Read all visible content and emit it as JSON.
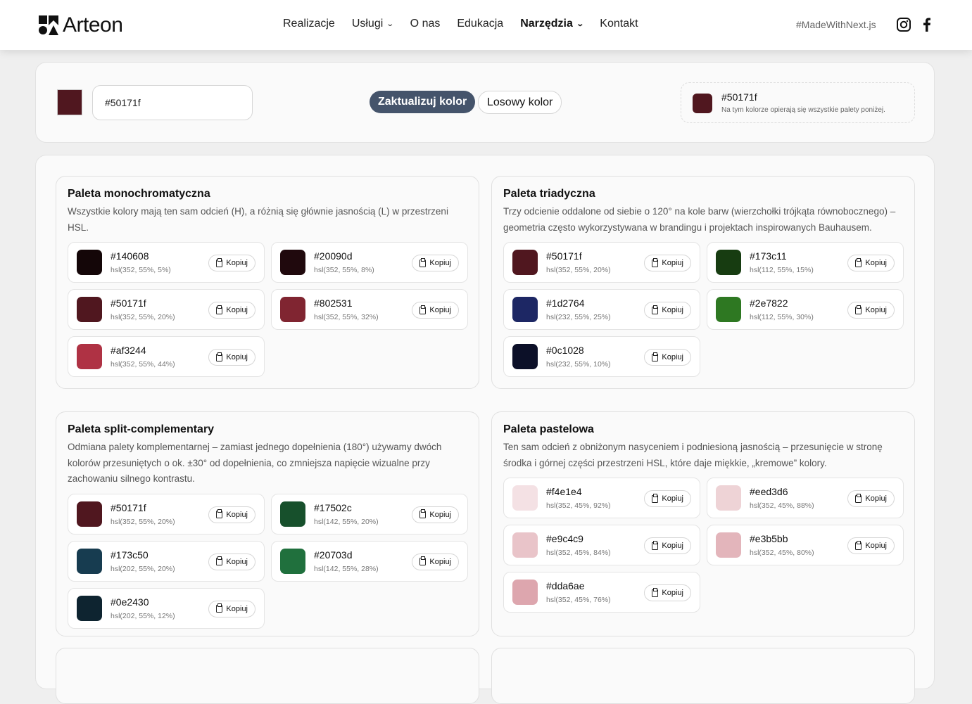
{
  "header": {
    "logo": "Arteon",
    "nav": [
      {
        "label": "Realizacje",
        "dropdown": false,
        "active": false
      },
      {
        "label": "Usługi",
        "dropdown": true,
        "active": false
      },
      {
        "label": "O nas",
        "dropdown": false,
        "active": false
      },
      {
        "label": "Edukacja",
        "dropdown": false,
        "active": false
      },
      {
        "label": "Narzędzia",
        "dropdown": true,
        "active": true
      },
      {
        "label": "Kontakt",
        "dropdown": false,
        "active": false
      }
    ],
    "hashtag": "#MadeWithNext.js"
  },
  "picker": {
    "current_color": "#50171f",
    "input_value": "#50171f",
    "update_label": "Zaktualizuj kolor",
    "random_label": "Losowy kolor",
    "base_hex": "#50171f",
    "base_desc": "Na tym kolorze opierają się wszystkie palety poniżej."
  },
  "copy_label": "Kopiuj",
  "palettes": [
    {
      "title": "Paleta monochromatyczna",
      "desc": "Wszystkie kolory mają ten sam odcień (H), a różnią się głównie jasnością (L) w przestrzeni HSL.",
      "colors": [
        [
          "#140608",
          "hsl(352, 55%, 5%)"
        ],
        [
          "#20090d",
          "hsl(352, 55%, 8%)"
        ],
        [
          "#50171f",
          "hsl(352, 55%, 20%)"
        ],
        [
          "#802531",
          "hsl(352, 55%, 32%)"
        ],
        [
          "#af3244",
          "hsl(352, 55%, 44%)"
        ]
      ]
    },
    {
      "title": "Paleta triadyczna",
      "desc": "Trzy odcienie oddalone od siebie o 120° na kole barw (wierzchołki trójkąta równobocznego) – geometria często wykorzystywana w brandingu i projektach inspirowanych Bauhausem.",
      "colors": [
        [
          "#50171f",
          "hsl(352, 55%, 20%)"
        ],
        [
          "#173c11",
          "hsl(112, 55%, 15%)"
        ],
        [
          "#1d2764",
          "hsl(232, 55%, 25%)"
        ],
        [
          "#2e7822",
          "hsl(112, 55%, 30%)"
        ],
        [
          "#0c1028",
          "hsl(232, 55%, 10%)"
        ]
      ]
    },
    {
      "title": "Paleta split-complementary",
      "desc": "Odmiana palety komplementarnej – zamiast jednego dopełnienia (180°) używamy dwóch kolorów przesuniętych o ok. ±30° od dopełnienia, co zmniejsza napięcie wizualne przy zachowaniu silnego kontrastu.",
      "colors": [
        [
          "#50171f",
          "hsl(352, 55%, 20%)"
        ],
        [
          "#17502c",
          "hsl(142, 55%, 20%)"
        ],
        [
          "#173c50",
          "hsl(202, 55%, 20%)"
        ],
        [
          "#20703d",
          "hsl(142, 55%, 28%)"
        ],
        [
          "#0e2430",
          "hsl(202, 55%, 12%)"
        ]
      ]
    },
    {
      "title": "Paleta pastelowa",
      "desc": "Ten sam odcień z obniżonym nasyceniem i podniesioną jasnością – przesunięcie w stronę środka i górnej części przestrzeni HSL, które daje miękkie, „kremowe” kolory.",
      "colors": [
        [
          "#f4e1e4",
          "hsl(352, 45%, 92%)"
        ],
        [
          "#eed3d6",
          "hsl(352, 45%, 88%)"
        ],
        [
          "#e9c4c9",
          "hsl(352, 45%, 84%)"
        ],
        [
          "#e3b5bb",
          "hsl(352, 45%, 80%)"
        ],
        [
          "#dda6ae",
          "hsl(352, 45%, 76%)"
        ]
      ]
    }
  ]
}
